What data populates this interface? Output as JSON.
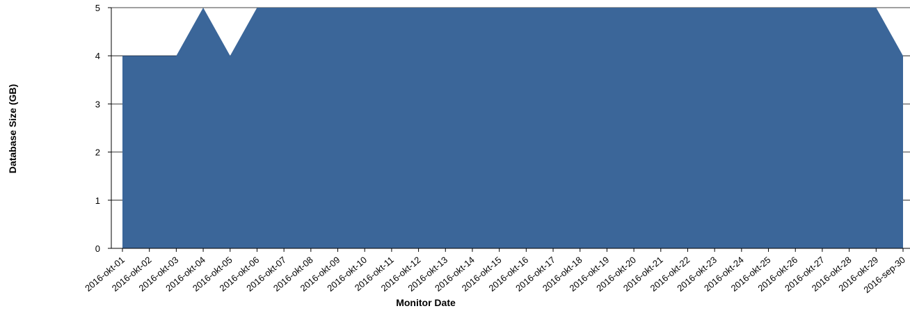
{
  "chart_data": {
    "type": "area",
    "title": "",
    "xlabel": "Monitor Date",
    "ylabel": "Database Size (GB)",
    "categories": [
      "2016-okt-01",
      "2016-okt-02",
      "2016-okt-03",
      "2016-okt-04",
      "2016-okt-05",
      "2016-okt-06",
      "2016-okt-07",
      "2016-okt-08",
      "2016-okt-09",
      "2016-okt-10",
      "2016-okt-11",
      "2016-okt-12",
      "2016-okt-13",
      "2016-okt-14",
      "2016-okt-15",
      "2016-okt-16",
      "2016-okt-17",
      "2016-okt-18",
      "2016-okt-19",
      "2016-okt-20",
      "2016-okt-21",
      "2016-okt-22",
      "2016-okt-23",
      "2016-okt-24",
      "2016-okt-25",
      "2016-okt-26",
      "2016-okt-27",
      "2016-okt-28",
      "2016-okt-29",
      "2016-sep-30"
    ],
    "values": [
      4,
      4,
      4,
      5,
      4,
      5,
      5,
      5,
      5,
      5,
      5,
      5,
      5,
      5,
      5,
      5,
      5,
      5,
      5,
      5,
      5,
      5,
      5,
      5,
      5,
      5,
      5,
      5,
      5,
      4
    ],
    "ylim": [
      0,
      5
    ],
    "yticks": [
      0,
      1,
      2,
      3,
      4,
      5
    ],
    "grid": "horizontal",
    "colors": {
      "fill": "#3B6699",
      "axis": "#000000"
    }
  }
}
